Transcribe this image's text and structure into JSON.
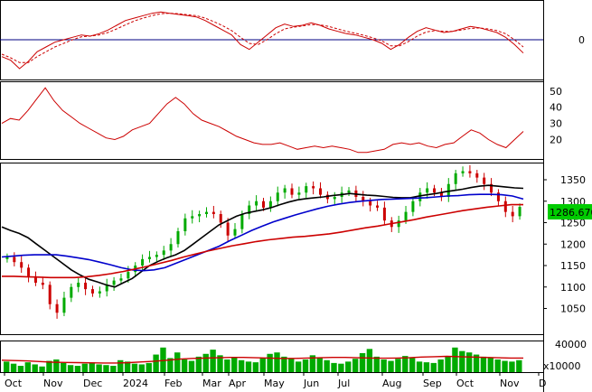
{
  "chart_data": {
    "type": "line",
    "panels": [
      {
        "id": "macd",
        "kind": "oscillator",
        "y_ticks": [
          "0"
        ],
        "series": [
          {
            "role": "macd",
            "color": "#cc0000",
            "style": "solid",
            "values": [
              -70,
              -85,
              -120,
              -90,
              -50,
              -30,
              -10,
              0,
              10,
              20,
              15,
              25,
              40,
              60,
              80,
              90,
              100,
              110,
              115,
              110,
              105,
              100,
              95,
              80,
              60,
              40,
              20,
              -20,
              -40,
              -10,
              20,
              50,
              65,
              55,
              60,
              70,
              60,
              45,
              35,
              25,
              20,
              10,
              0,
              -15,
              -40,
              -20,
              10,
              35,
              50,
              40,
              30,
              35,
              45,
              55,
              50,
              40,
              30,
              10,
              -20,
              -55
            ]
          },
          {
            "role": "signal",
            "color": "#cc0000",
            "style": "dashed",
            "values": [
              -60,
              -75,
              -95,
              -95,
              -70,
              -50,
              -30,
              -15,
              0,
              12,
              15,
              20,
              30,
              45,
              62,
              78,
              90,
              100,
              108,
              110,
              108,
              104,
              100,
              90,
              75,
              58,
              38,
              10,
              -15,
              -20,
              0,
              25,
              45,
              52,
              57,
              63,
              62,
              55,
              45,
              35,
              27,
              18,
              8,
              -5,
              -25,
              -25,
              -8,
              15,
              32,
              38,
              35,
              35,
              40,
              47,
              49,
              45,
              38,
              25,
              0,
              -30
            ]
          }
        ]
      },
      {
        "id": "adx",
        "kind": "oscillator",
        "y_ticks": [
          "50",
          "40",
          "30",
          "20"
        ],
        "ylim": [
          8,
          56
        ],
        "series": [
          {
            "role": "line",
            "color": "#cc0000",
            "values": [
              30,
              33,
              32,
              38,
              45,
              52,
              44,
              38,
              34,
              30,
              27,
              24,
              21,
              20,
              22,
              26,
              28,
              30,
              36,
              42,
              46,
              42,
              36,
              32,
              30,
              28,
              25,
              22,
              20,
              18,
              17,
              17,
              18,
              16,
              14,
              15,
              16,
              15,
              16,
              15,
              14,
              12,
              12,
              13,
              14,
              17,
              18,
              17,
              18,
              16,
              15,
              17,
              18,
              22,
              26,
              24,
              20,
              17,
              15,
              20,
              25
            ]
          }
        ]
      },
      {
        "id": "price",
        "kind": "candlestick",
        "y_ticks": [
          "1350",
          "1300",
          "1250",
          "1200",
          "1150",
          "1100",
          "1050"
        ],
        "ylim": [
          990,
          1390
        ],
        "last_price_label": "1286.670",
        "closes": [
          1170,
          1158,
          1145,
          1125,
          1110,
          1105,
          1060,
          1040,
          1075,
          1100,
          1110,
          1095,
          1085,
          1090,
          1105,
          1115,
          1120,
          1135,
          1150,
          1165,
          1170,
          1175,
          1185,
          1200,
          1230,
          1260,
          1265,
          1270,
          1275,
          1270,
          1250,
          1220,
          1235,
          1270,
          1290,
          1300,
          1285,
          1300,
          1320,
          1330,
          1315,
          1320,
          1335,
          1330,
          1315,
          1305,
          1310,
          1320,
          1325,
          1310,
          1300,
          1290,
          1285,
          1255,
          1240,
          1255,
          1275,
          1300,
          1320,
          1330,
          1320,
          1310,
          1340,
          1365,
          1370,
          1365,
          1355,
          1340,
          1320,
          1300,
          1275,
          1265,
          1286.67
        ],
        "series": [
          {
            "role": "ma-short",
            "color": "#000000",
            "values": [
              1240,
              1232,
              1225,
              1215,
              1200,
              1185,
              1170,
              1155,
              1140,
              1128,
              1118,
              1112,
              1105,
              1100,
              1110,
              1120,
              1135,
              1150,
              1160,
              1168,
              1175,
              1185,
              1200,
              1215,
              1230,
              1245,
              1255,
              1265,
              1272,
              1276,
              1280,
              1285,
              1292,
              1298,
              1303,
              1306,
              1308,
              1310,
              1313,
              1315,
              1318,
              1316,
              1314,
              1313,
              1311,
              1309,
              1308,
              1308,
              1312,
              1315,
              1318,
              1322,
              1325,
              1328,
              1332,
              1335,
              1337,
              1335,
              1333,
              1331,
              1330
            ]
          },
          {
            "role": "ma-mid",
            "color": "#0000cc",
            "values": [
              1170,
              1172,
              1174,
              1175,
              1175,
              1175,
              1172,
              1168,
              1164,
              1158,
              1152,
              1145,
              1140,
              1138,
              1140,
              1145,
              1155,
              1165,
              1175,
              1185,
              1195,
              1208,
              1220,
              1232,
              1242,
              1252,
              1260,
              1268,
              1275,
              1282,
              1288,
              1293,
              1297,
              1300,
              1302,
              1304,
              1305,
              1306,
              1307,
              1308,
              1310,
              1312,
              1313,
              1315,
              1316,
              1316,
              1315,
              1312,
              1305
            ]
          },
          {
            "role": "ma-long",
            "color": "#cc0000",
            "values": [
              1125,
              1125,
              1124,
              1123,
              1122,
              1122,
              1122,
              1124,
              1127,
              1131,
              1136,
              1142,
              1148,
              1155,
              1162,
              1170,
              1177,
              1184,
              1190,
              1196,
              1201,
              1206,
              1210,
              1213,
              1216,
              1218,
              1221,
              1224,
              1228,
              1233,
              1238,
              1242,
              1247,
              1252,
              1257,
              1263,
              1268,
              1273,
              1278,
              1282,
              1286,
              1289,
              1292,
              1292
            ]
          }
        ]
      },
      {
        "id": "volume",
        "kind": "bar",
        "y_ticks": [
          "40000"
        ],
        "ylim": [
          0,
          45000
        ],
        "unit_label": "x10000",
        "bar_color": "#00aa00",
        "values": [
          15000,
          12000,
          9000,
          14000,
          11000,
          8000,
          16000,
          18000,
          13000,
          10000,
          9000,
          12000,
          14000,
          11000,
          10000,
          9000,
          17000,
          15000,
          12000,
          11000,
          13000,
          25000,
          35000,
          20000,
          28000,
          18000,
          16000,
          22000,
          26000,
          32000,
          24000,
          18000,
          21000,
          17000,
          15000,
          14000,
          20000,
          26000,
          28000,
          22000,
          19000,
          15000,
          18000,
          24000,
          21000,
          17000,
          13000,
          12000,
          15000,
          19000,
          27000,
          33000,
          22000,
          18000,
          16000,
          19000,
          23000,
          20000,
          15000,
          14000,
          13000,
          18000,
          22000,
          35000,
          30000,
          28000,
          25000,
          22000,
          20000,
          18000,
          16000,
          15000,
          17000
        ],
        "ma": {
          "color": "#cc0000",
          "values": [
            17000,
            16500,
            16000,
            15000,
            14200,
            13800,
            13500,
            13200,
            13000,
            13000,
            13500,
            14500,
            15500,
            17000,
            18500,
            19500,
            20000,
            20500,
            21000,
            21000,
            20500,
            20000,
            19500,
            19500,
            20000,
            20500,
            21000,
            21000,
            20500,
            20000,
            19800,
            20000,
            20500,
            21500,
            22000,
            22500,
            22000,
            21500,
            21000,
            20500,
            20000,
            20000
          ]
        }
      }
    ],
    "x_axis": {
      "ticks": [
        "Oct",
        "Nov",
        "Dec",
        "2024",
        "Feb",
        "Mar",
        "Apr",
        "May",
        "Jun",
        "Jul",
        "Aug",
        "Sep",
        "Oct",
        "Nov",
        "D"
      ]
    },
    "grid": false
  },
  "colors": {
    "background": "#ffffff",
    "up": "#00aa00",
    "down": "#cc0000",
    "price_tag": "#00cc00",
    "frame": "#000000",
    "zero_line": "#000080"
  }
}
